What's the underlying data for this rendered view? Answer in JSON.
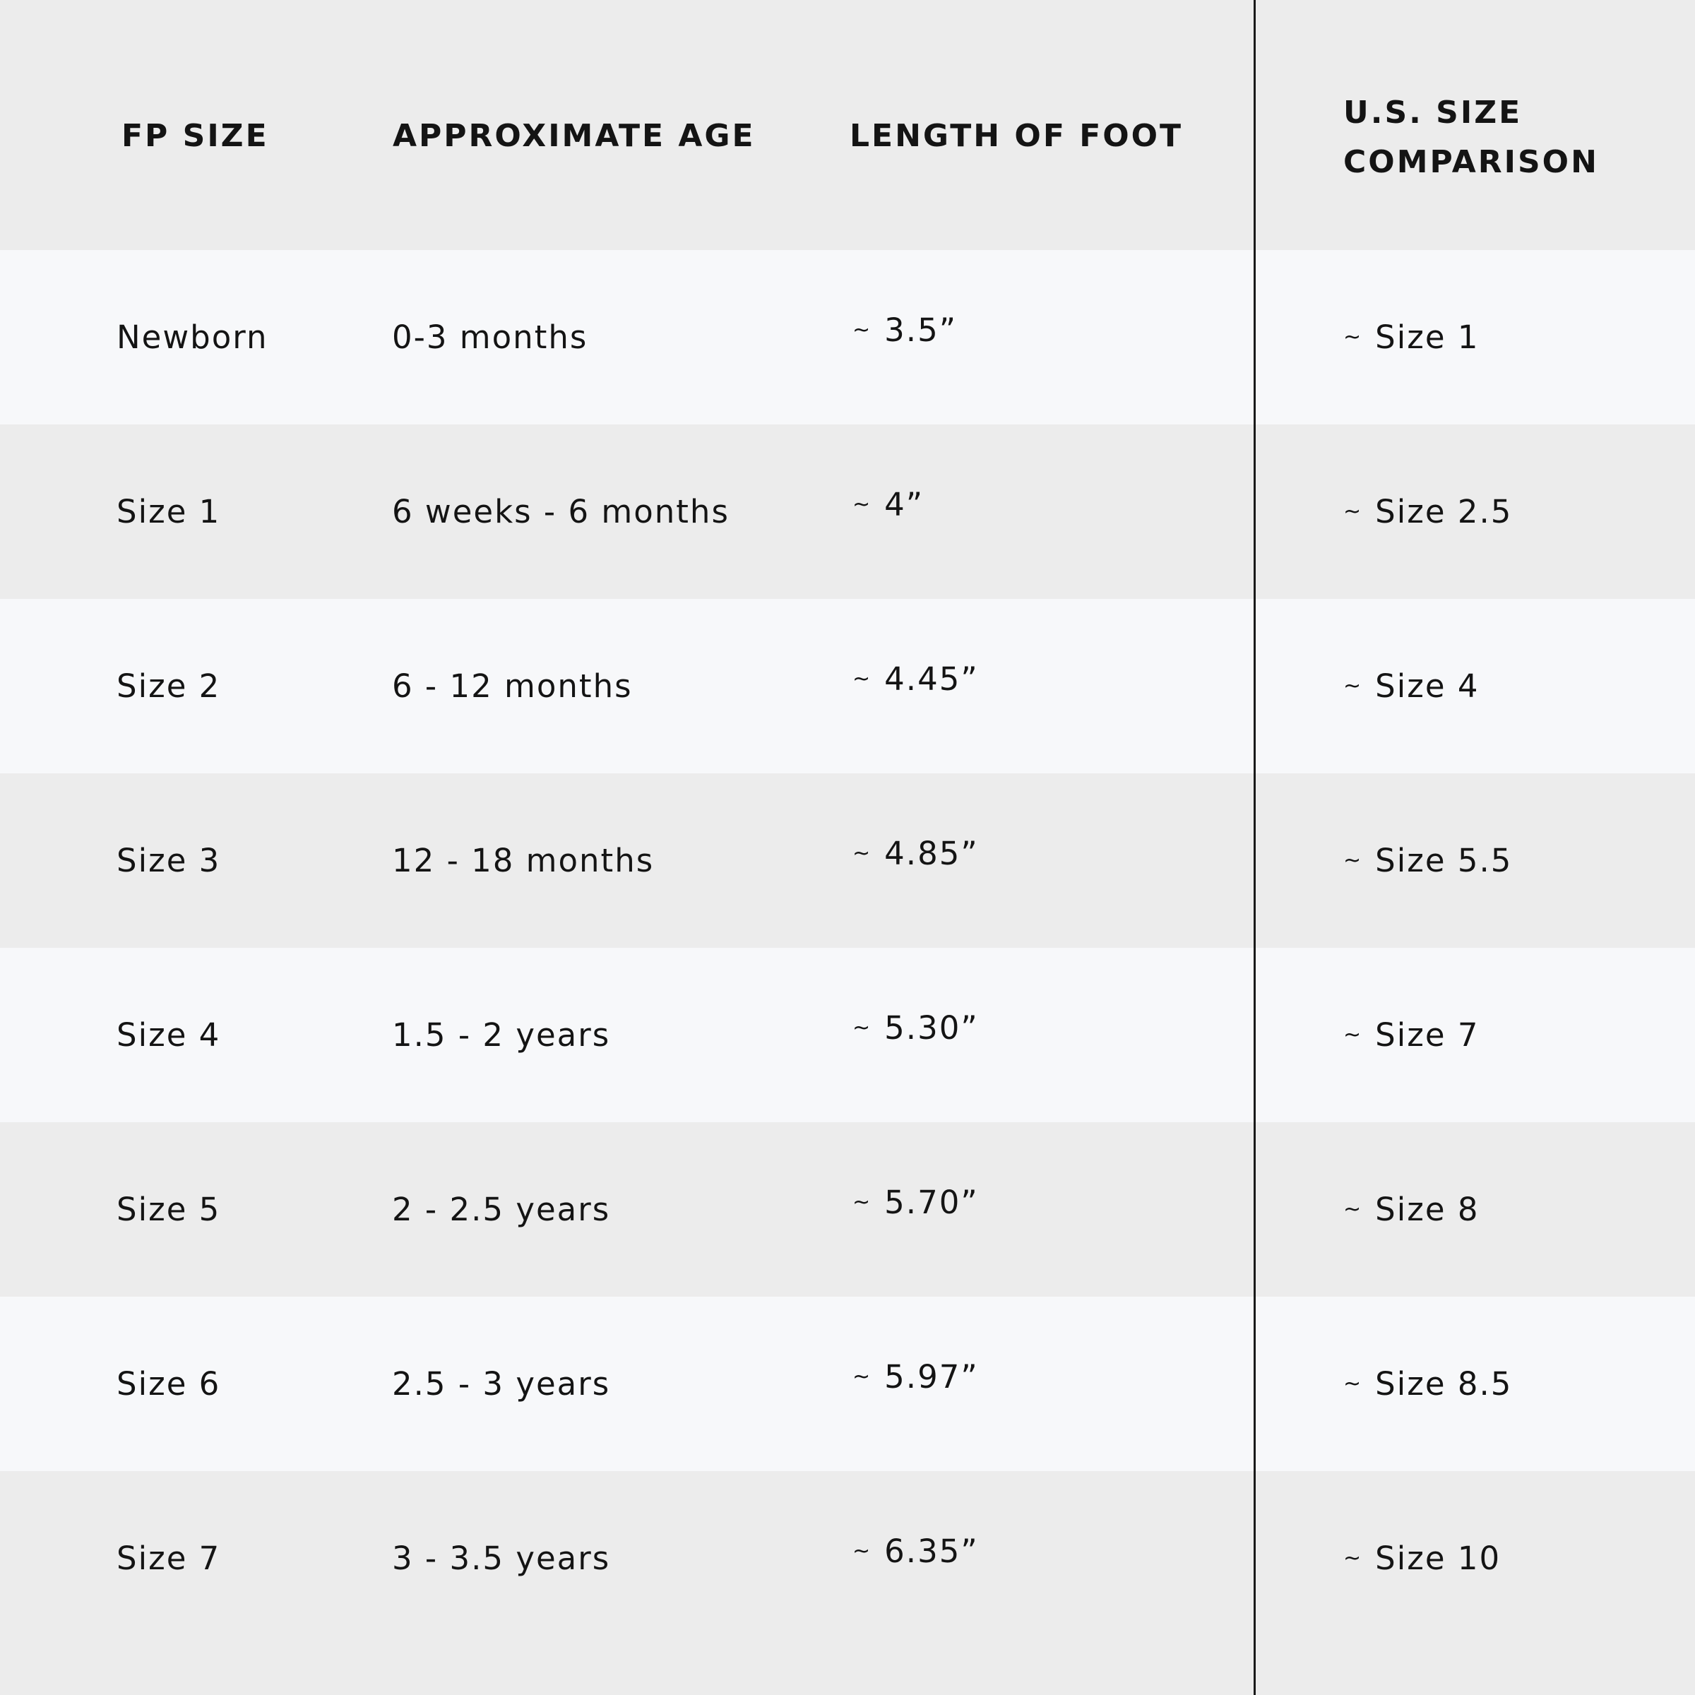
{
  "table": {
    "headers": [
      "FP SIZE",
      "APPROXIMATE AGE",
      "LENGTH OF FOOT",
      "U.S. SIZE",
      "COMPARISON"
    ],
    "approx_symbol": "~",
    "rows": [
      {
        "fp_size": "Newborn",
        "age": "0-3 months",
        "length": "3.5”",
        "us_size": "Size 1"
      },
      {
        "fp_size": "Size 1",
        "age": "6 weeks - 6 months",
        "length": "4”",
        "us_size": "Size 2.5"
      },
      {
        "fp_size": "Size 2",
        "age": "6 - 12 months",
        "length": "4.45”",
        "us_size": "Size 4"
      },
      {
        "fp_size": "Size 3",
        "age": "12 - 18 months",
        "length": "4.85”",
        "us_size": "Size 5.5"
      },
      {
        "fp_size": "Size 4",
        "age": "1.5 - 2 years",
        "length": "5.30”",
        "us_size": "Size 7"
      },
      {
        "fp_size": "Size 5",
        "age": "2 - 2.5 years",
        "length": "5.70”",
        "us_size": "Size 8"
      },
      {
        "fp_size": "Size 6",
        "age": "2.5 - 3 years",
        "length": "5.97”",
        "us_size": "Size 8.5"
      },
      {
        "fp_size": "Size 7",
        "age": "3 - 3.5 years",
        "length": "6.35”",
        "us_size": "Size 10"
      }
    ]
  },
  "colors": {
    "header_bg": "#ececec",
    "row_light": "#f7f8fa",
    "row_dark": "#ececec",
    "text": "#141414",
    "divider": "#1a1a1a"
  }
}
